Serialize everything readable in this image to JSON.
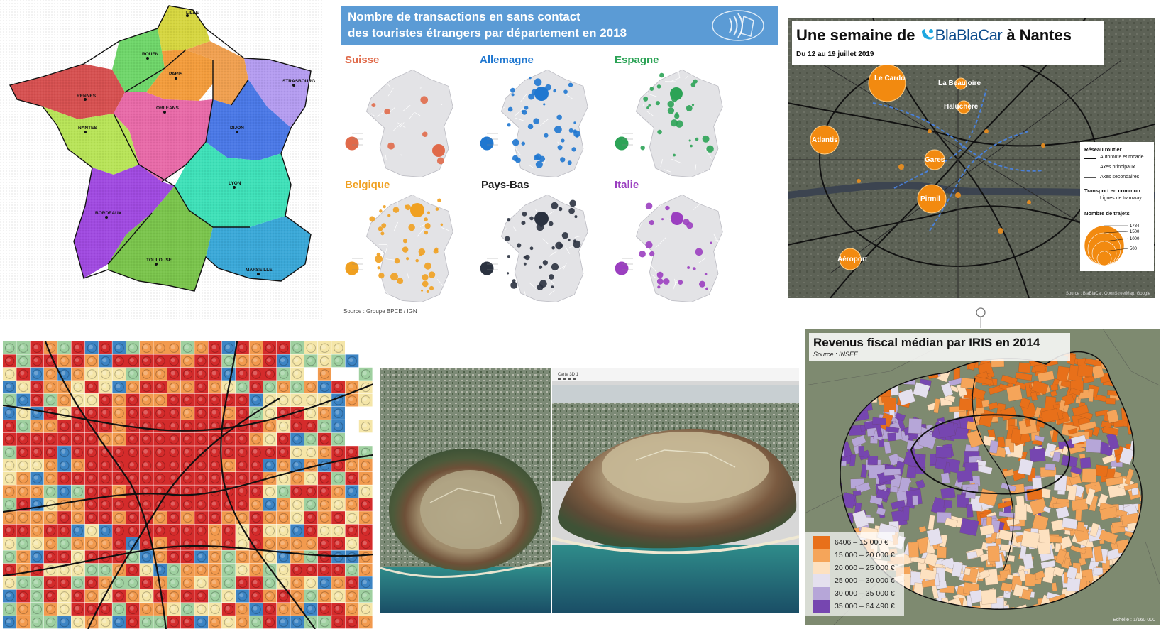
{
  "panel_regions": {
    "cities": [
      "LILLE",
      "ROUEN",
      "PARIS",
      "STRASBOURG",
      "RENNES",
      "ORLEANS",
      "NANTES",
      "DIJON",
      "LYON",
      "BORDEAUX",
      "TOULOUSE",
      "MARSEILLE"
    ]
  },
  "panel_transactions": {
    "title_line1": "Nombre de transactions en sans contact",
    "title_line2": "des touristes étrangers par département en 2018",
    "countries": [
      {
        "name": "Suisse",
        "color": "#e06a4a"
      },
      {
        "name": "Allemagne",
        "color": "#1f77d0"
      },
      {
        "name": "Espagne",
        "color": "#2ca356"
      },
      {
        "name": "Belgique",
        "color": "#f0a020"
      },
      {
        "name": "Pays-Bas",
        "color": "#2b3240"
      },
      {
        "name": "Italie",
        "color": "#9b3fc0"
      }
    ],
    "source": "Source : Groupe BPCE / IGN"
  },
  "panel_blablacar": {
    "title_prefix": "Une semaine de",
    "brand": "BlaBlaCar",
    "title_suffix": "à Nantes",
    "subtitle": "Du 12 au 19 juillet 2019",
    "places": [
      "Le Cardo",
      "La Beaujoire",
      "Haluchère",
      "Atlantis",
      "Gares",
      "Pirmil",
      "Aéroport"
    ],
    "legend": {
      "section1": "Réseau routier",
      "road1": "Autoroute et rocade",
      "road2": "Axes principaux",
      "road3": "Axes secondaires",
      "section2": "Transport en commun",
      "tram": "Lignes de tramway",
      "section3": "Nombre de trajets",
      "sizes": [
        "1784",
        "1500",
        "1000",
        "500"
      ]
    },
    "source": "Source : BlaBlaCar, OpenStreetMap, Google"
  },
  "panel_3d": {
    "window_title": "Carte 3D 1"
  },
  "panel_revenue": {
    "title": "Revenus fiscal médian par IRIS en 2014",
    "source": "Source : INSEE",
    "legend": [
      {
        "label": "6406 – 15 000 €",
        "color": "#e8701a"
      },
      {
        "label": "15 000 – 20 000 €",
        "color": "#f5a55a"
      },
      {
        "label": "20 000 – 25 000 €",
        "color": "#fde1c0"
      },
      {
        "label": "25 000 – 30 000 €",
        "color": "#e4e0ee"
      },
      {
        "label": "30 000 – 35 000 €",
        "color": "#b6a6d8"
      },
      {
        "label": "35 000 – 64 490 €",
        "color": "#7646b0"
      }
    ],
    "scale": "Echelle : 1/160 000"
  }
}
